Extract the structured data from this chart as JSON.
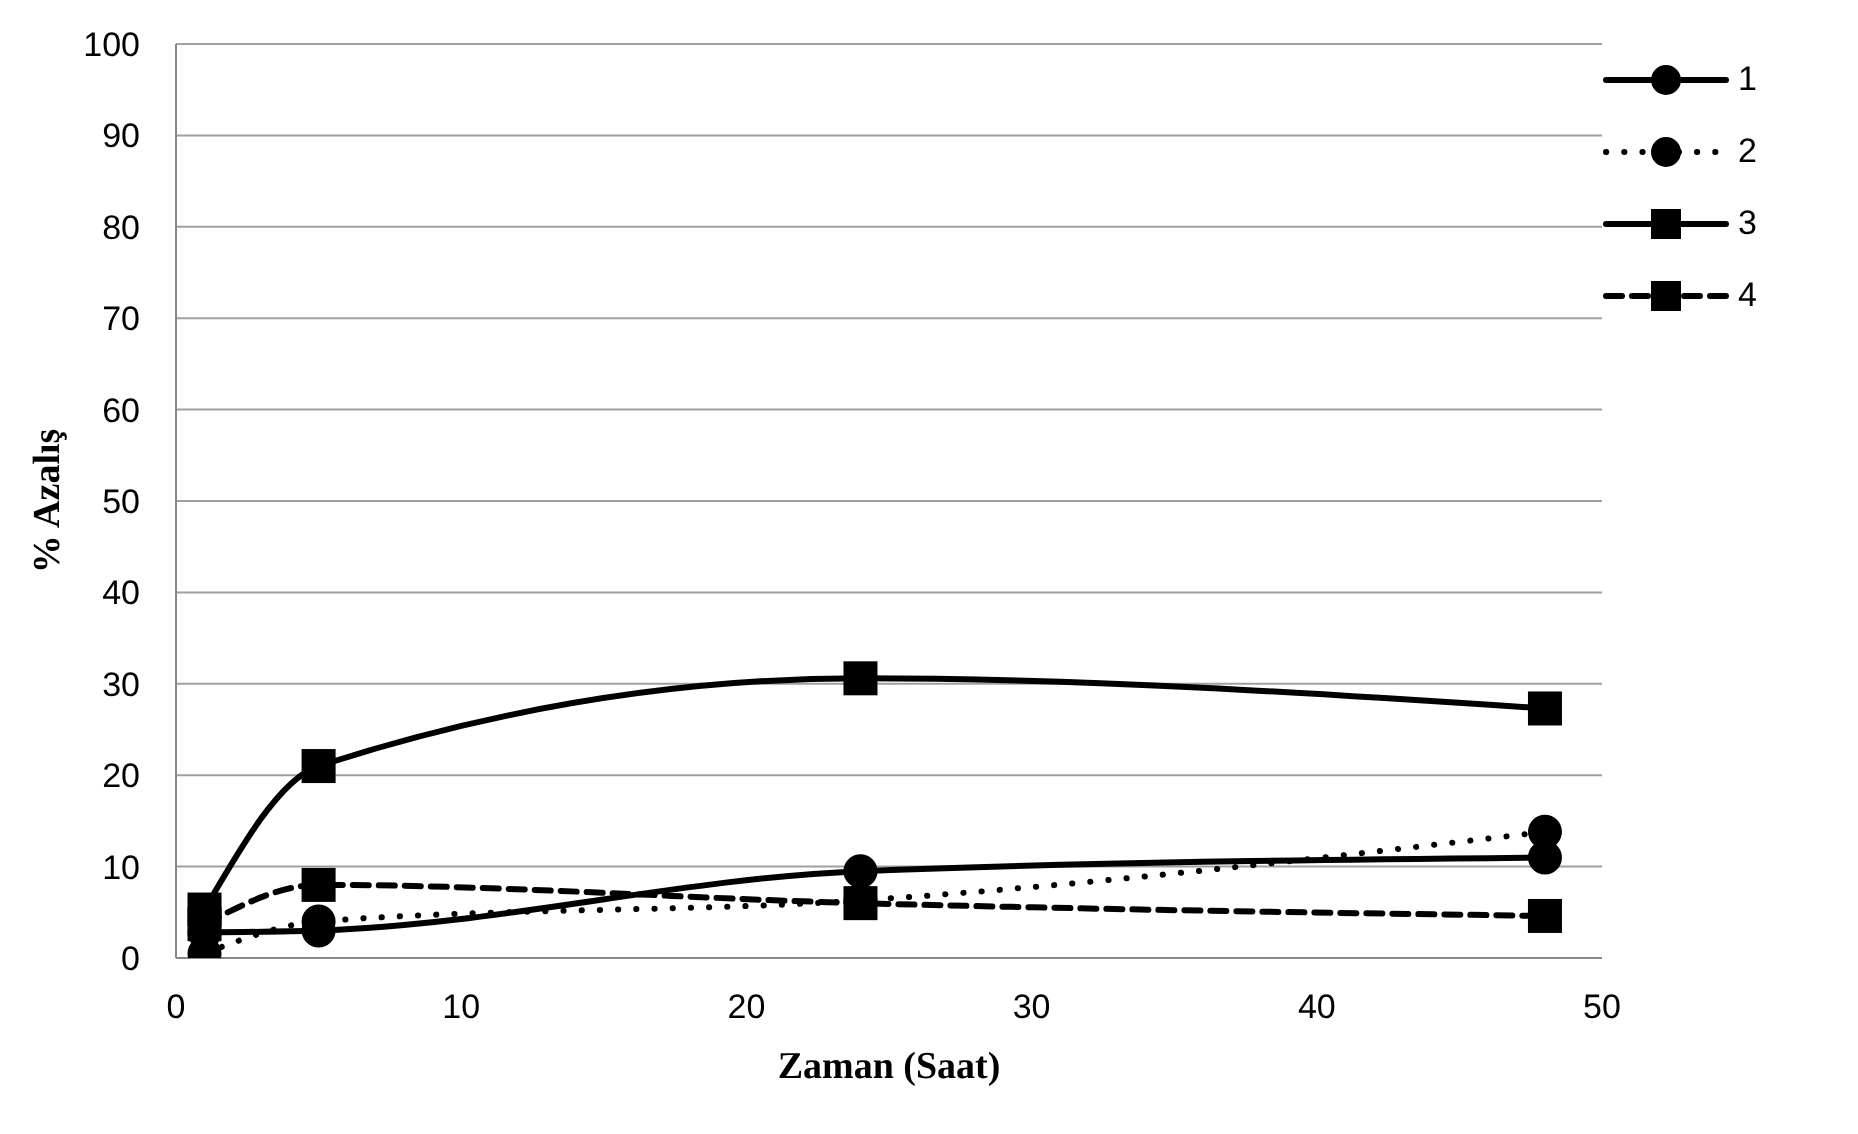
{
  "chart_data": {
    "type": "line",
    "xlabel": "Zaman (Saat)",
    "ylabel": "% Azalış",
    "x": [
      1,
      5,
      24,
      48
    ],
    "series": [
      {
        "name": "1",
        "color": "#000000",
        "marker": "circle",
        "line_style": "solid",
        "values": [
          2.8,
          3,
          9.5,
          11
        ]
      },
      {
        "name": "2",
        "color": "#000000",
        "marker": "circle",
        "line_style": "dotted",
        "values": [
          0.5,
          4,
          6.3,
          13.8
        ]
      },
      {
        "name": "3",
        "color": "#000000",
        "marker": "square",
        "line_style": "solid",
        "values": [
          5.3,
          21,
          30.6,
          27.3
        ]
      },
      {
        "name": "4",
        "color": "#000000",
        "marker": "square",
        "line_style": "dashed",
        "values": [
          3.7,
          8,
          6,
          4.6
        ]
      }
    ],
    "xlim": [
      0,
      50
    ],
    "xticks": [
      0,
      10,
      20,
      30,
      40,
      50
    ],
    "ylim": [
      0,
      100
    ],
    "yticks": [
      0,
      10,
      20,
      30,
      40,
      50,
      60,
      70,
      80,
      90,
      100
    ],
    "grid": "y",
    "legend": "right"
  }
}
